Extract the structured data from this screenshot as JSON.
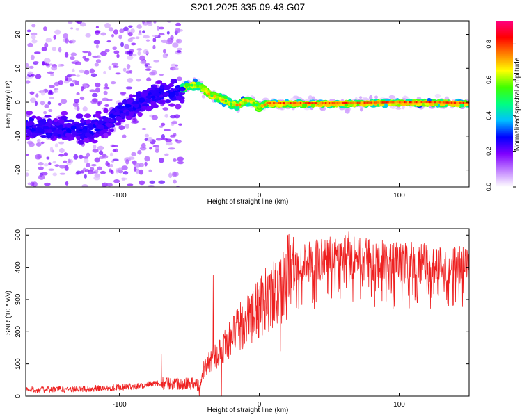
{
  "figure": {
    "title": "S201.2025.335.09.43.G07"
  },
  "chart_data": [
    {
      "type": "heatmap",
      "name": "spectrogram",
      "title": "S201.2025.335.09.43.G07",
      "xlabel": "Height of straight line (km)",
      "ylabel": "Frequency (Hz)",
      "xlim": [
        -167,
        150
      ],
      "ylim": [
        -25,
        24
      ],
      "x_ticks": [
        "-100",
        "0",
        "100"
      ],
      "x_tick_values": [
        -100,
        0,
        100
      ],
      "y_ticks": [
        "20",
        "10",
        "0",
        "-10",
        "-20"
      ],
      "y_tick_values": [
        20,
        10,
        0,
        -10,
        -20
      ],
      "colorbar": {
        "label": "Normalized spectral amplitude",
        "ticks": [
          "0.0",
          "0.2",
          "0.4",
          "0.6",
          "0.8"
        ],
        "tick_values": [
          0.0,
          0.2,
          0.4,
          0.6,
          0.8
        ],
        "range": [
          0,
          0.93
        ],
        "colors": [
          "#ffffff",
          "#c080ff",
          "#8000ff",
          "#0000ff",
          "#00c0ff",
          "#00ff80",
          "#40ff00",
          "#ffff00",
          "#ff8000",
          "#ff0000",
          "#ff0080"
        ]
      },
      "ridge_frequency_hz": [
        {
          "x": -167,
          "y": -7
        },
        {
          "x": -150,
          "y": -8
        },
        {
          "x": -135,
          "y": -8
        },
        {
          "x": -120,
          "y": -8
        },
        {
          "x": -110,
          "y": -6
        },
        {
          "x": -100,
          "y": -3
        },
        {
          "x": -90,
          "y": -1
        },
        {
          "x": -80,
          "y": 1
        },
        {
          "x": -70,
          "y": 3
        },
        {
          "x": -60,
          "y": 3
        },
        {
          "x": -55,
          "y": 4
        },
        {
          "x": -50,
          "y": 5
        },
        {
          "x": -45,
          "y": 5
        },
        {
          "x": -40,
          "y": 4
        },
        {
          "x": -35,
          "y": 2
        },
        {
          "x": -30,
          "y": 1.5
        },
        {
          "x": -25,
          "y": 0.5
        },
        {
          "x": -20,
          "y": -0.5
        },
        {
          "x": -15,
          "y": -1
        },
        {
          "x": -10,
          "y": 0.5
        },
        {
          "x": -5,
          "y": 0
        },
        {
          "x": 0,
          "y": -1.5
        },
        {
          "x": 5,
          "y": -0.5
        },
        {
          "x": 10,
          "y": -0.5
        },
        {
          "x": 50,
          "y": -0.5
        },
        {
          "x": 90,
          "y": -0.3
        },
        {
          "x": 120,
          "y": -0.2
        },
        {
          "x": 150,
          "y": -0.5
        }
      ]
    },
    {
      "type": "line",
      "name": "snr",
      "xlabel": "Height of straight line (km)",
      "ylabel": "SNR (10 * v/v)",
      "xlim": [
        -167,
        150
      ],
      "ylim": [
        0,
        520
      ],
      "x_ticks": [
        "-100",
        "0",
        "100"
      ],
      "x_tick_values": [
        -100,
        0,
        100
      ],
      "y_ticks": [
        "500",
        "400",
        "300",
        "200",
        "100",
        "0"
      ],
      "y_tick_values": [
        500,
        400,
        300,
        200,
        100,
        0
      ],
      "color": "#ee2020",
      "series": [
        {
          "name": "SNR",
          "x": [
            -167,
            -150,
            -130,
            -110,
            -90,
            -80,
            -70,
            -60,
            -50,
            -45,
            -42,
            -40,
            -35,
            -30,
            -25,
            -20,
            -15,
            -10,
            -5,
            0,
            5,
            10,
            15,
            20,
            25,
            30,
            40,
            50,
            60,
            70,
            80,
            90,
            100,
            110,
            120,
            130,
            140,
            150
          ],
          "y": [
            20,
            20,
            22,
            25,
            30,
            35,
            40,
            40,
            40,
            38,
            30,
            80,
            110,
            130,
            160,
            180,
            210,
            230,
            250,
            270,
            300,
            320,
            340,
            370,
            390,
            410,
            420,
            430,
            440,
            430,
            420,
            420,
            410,
            415,
            410,
            410,
            405,
            400
          ],
          "spikes": [
            {
              "x": -70,
              "y": 130
            },
            {
              "x": -43,
              "y": 0
            },
            {
              "x": -33,
              "y": 375
            },
            {
              "x": -27,
              "y": 0
            },
            {
              "x": 15,
              "y": 140
            },
            {
              "x": 64,
              "y": 510
            },
            {
              "x": 113,
              "y": 290
            },
            {
              "x": 146,
              "y": 320
            }
          ]
        }
      ]
    }
  ]
}
